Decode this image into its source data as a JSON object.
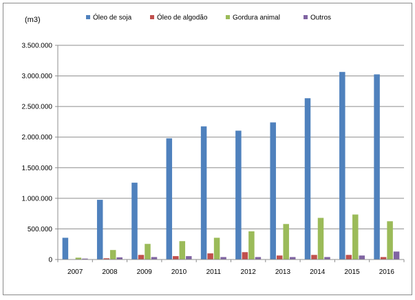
{
  "chart_data": {
    "type": "bar",
    "unit_label": "(m3)",
    "categories": [
      "2007",
      "2008",
      "2009",
      "2010",
      "2011",
      "2012",
      "2013",
      "2014",
      "2015",
      "2016"
    ],
    "series": [
      {
        "name": "Óleo de soja",
        "color": "#4F81BD",
        "values": [
          355000,
          975000,
          1255000,
          1980000,
          2175000,
          2105000,
          2240000,
          2635000,
          3065000,
          3025000
        ]
      },
      {
        "name": "Óleo de algodão",
        "color": "#C0504D",
        "values": [
          5000,
          20000,
          75000,
          55000,
          100000,
          120000,
          65000,
          75000,
          75000,
          40000
        ]
      },
      {
        "name": "Gordura animal",
        "color": "#9BBB59",
        "values": [
          30000,
          155000,
          255000,
          300000,
          355000,
          460000,
          580000,
          680000,
          735000,
          625000
        ]
      },
      {
        "name": "Outros",
        "color": "#8064A2",
        "values": [
          15000,
          35000,
          40000,
          55000,
          40000,
          40000,
          40000,
          40000,
          65000,
          130000
        ]
      }
    ],
    "ylim": [
      0,
      3500000
    ],
    "yticks": [
      0,
      500000,
      1000000,
      1500000,
      2000000,
      2500000,
      3000000,
      3500000
    ],
    "ytick_labels": [
      "0",
      "500.000",
      "1.000.000",
      "1.500.000",
      "2.000.000",
      "2.500.000",
      "3.000.000",
      "3.500.000"
    ],
    "grid": "horizontal",
    "legend_position": "top"
  }
}
